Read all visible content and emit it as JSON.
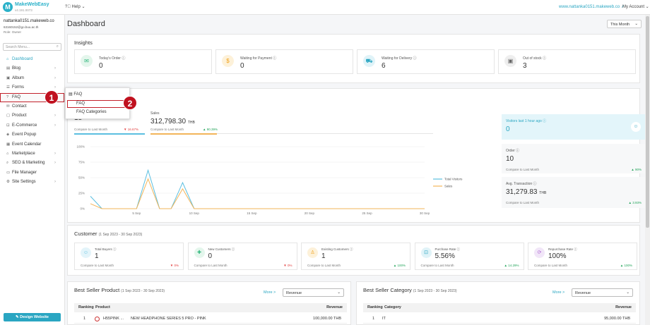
{
  "topbar": {
    "app_name": "MakeWebEasy",
    "version": "v4.191.0073",
    "help": "Help",
    "site_link": "www.nattanka0151.makeweb.co",
    "account": "My Account"
  },
  "user": {
    "name": "nattanka0151.makeweb.co",
    "email": "63160152@go.buu.ac.th",
    "role": "Role: Owner"
  },
  "sidebar": {
    "search_placeholder": "Search Menu...",
    "items": [
      {
        "label": "Dashboard",
        "icon": "home-icon",
        "chev": ""
      },
      {
        "label": "Blog",
        "icon": "blog-icon",
        "chev": "›"
      },
      {
        "label": "Album",
        "icon": "album-icon",
        "chev": "›"
      },
      {
        "label": "Forms",
        "icon": "forms-icon",
        "chev": "›"
      },
      {
        "label": "FAQ",
        "icon": "faq-icon",
        "chev": "›"
      },
      {
        "label": "Contact",
        "icon": "contact-icon",
        "chev": ""
      },
      {
        "label": "Product",
        "icon": "product-icon",
        "chev": "›"
      },
      {
        "label": "E-Commerce",
        "icon": "ecommerce-icon",
        "chev": "›"
      },
      {
        "label": "Event Popup",
        "icon": "popup-icon",
        "chev": ""
      },
      {
        "label": "Event Calendar",
        "icon": "calendar-icon",
        "chev": ""
      },
      {
        "label": "Marketplace",
        "icon": "marketplace-icon",
        "chev": "›"
      },
      {
        "label": "SEO & Marketing",
        "icon": "seo-icon",
        "chev": "›"
      },
      {
        "label": "File Manager",
        "icon": "folder-icon",
        "chev": ""
      },
      {
        "label": "Site Settings",
        "icon": "gear-icon",
        "chev": "›"
      }
    ],
    "design_button": "Design Website"
  },
  "popup": {
    "header": "FAQ",
    "items": [
      "FAQ",
      "FAQ Categories"
    ]
  },
  "badges": [
    "1",
    "2"
  ],
  "main": {
    "title": "Dashboard",
    "period": "This Month"
  },
  "insights": {
    "title": "Insights",
    "cards": [
      {
        "label": "Today's Order",
        "value": "0",
        "color": "#2ab57a",
        "bg": "#e4f6ec"
      },
      {
        "label": "Waiting for Payment",
        "value": "0",
        "color": "#f0a21c",
        "bg": "#fdf1d9"
      },
      {
        "label": "Waiting for Delivery",
        "value": "6",
        "color": "#2aa6c2",
        "bg": "#e0f3f8"
      },
      {
        "label": "Out of stock",
        "value": "3",
        "color": "#666",
        "bg": "#eeeeee"
      }
    ]
  },
  "sales_overview": {
    "visitors_value": "18",
    "visitors_compare": "Compare to Last Month",
    "visitors_change": "▼ 16.67%",
    "sales_label": "Sales",
    "sales_value": "312,798.30",
    "sales_unit": "THB",
    "sales_compare": "Compare to Last Month",
    "sales_change": "▲ 90.39%",
    "right": [
      {
        "label": "Visitors last 1 hour ago",
        "value": "0",
        "cmp": "",
        "chg": "",
        "unit": ""
      },
      {
        "label": "Order",
        "value": "10",
        "cmp": "Compare to Last Month",
        "chg": "▲ 90%",
        "unit": ""
      },
      {
        "label": "Avg. Transaction",
        "value": "31,279.83",
        "cmp": "Compare to Last Month",
        "chg": "▲ 3.93%",
        "unit": "THB"
      }
    ]
  },
  "chart_data": {
    "type": "line",
    "x": [
      "1 Sep",
      "2 Sep",
      "3 Sep",
      "4 Sep",
      "5 Sep",
      "6 Sep",
      "7 Sep",
      "8 Sep",
      "9 Sep",
      "10 Sep",
      "11 Sep",
      "12 Sep",
      "13 Sep",
      "14 Sep",
      "15 Sep",
      "16 Sep",
      "17 Sep",
      "18 Sep",
      "19 Sep",
      "20 Sep",
      "21 Sep",
      "22 Sep",
      "23 Sep",
      "24 Sep",
      "25 Sep",
      "26 Sep",
      "27 Sep",
      "28 Sep",
      "29 Sep",
      "30 Sep"
    ],
    "xticks": [
      "5 Sep",
      "10 Sep",
      "15 Sep",
      "20 Sep",
      "25 Sep",
      "30 Sep"
    ],
    "yticks": [
      "100%",
      "75%",
      "50%",
      "25%",
      "0%"
    ],
    "ylim": [
      0,
      100
    ],
    "series": [
      {
        "name": "Total Visitors",
        "color": "#5bbfe0",
        "values": [
          20,
          0,
          0,
          0,
          0,
          62,
          0,
          0,
          42,
          0,
          0,
          0,
          0,
          0,
          0,
          0,
          0,
          0,
          0,
          0,
          0,
          0,
          0,
          0,
          0,
          0,
          0,
          0,
          0,
          0
        ]
      },
      {
        "name": "Sales",
        "color": "#f2b55a",
        "values": [
          8,
          0,
          0,
          0,
          0,
          48,
          0,
          0,
          32,
          0,
          0,
          0,
          0,
          0,
          0,
          0,
          0,
          0,
          0,
          0,
          0,
          0,
          0,
          0,
          0,
          0,
          0,
          0,
          0,
          0
        ]
      }
    ],
    "legend_position": "right"
  },
  "customer": {
    "title": "Customer",
    "range": "(1 Sep 2023 - 30 Sep 2023)",
    "cards": [
      {
        "label": "Total Buyers",
        "value": "1",
        "cmp": "Compare to Last Month",
        "chg": "▼ 0%",
        "cls": "neg",
        "color": "#5bbfe0",
        "bg": "#e3f4fa"
      },
      {
        "label": "New Customers",
        "value": "0",
        "cmp": "Compare to Last Month",
        "chg": "▼ 0%",
        "cls": "neg",
        "color": "#2ab57a",
        "bg": "#e4f6ec"
      },
      {
        "label": "Existing Customers",
        "value": "1",
        "cmp": "Compare to Last Month",
        "chg": "▲ 100%",
        "cls": "pos",
        "color": "#f0a21c",
        "bg": "#fdf1d9"
      },
      {
        "label": "Purchase Rate",
        "value": "5.56%",
        "cmp": "Compare to Last Month",
        "chg": "▲ 14.29%",
        "cls": "pos",
        "color": "#2aa6c2",
        "bg": "#e0f3f8"
      },
      {
        "label": "Repurchase Rate",
        "value": "100%",
        "cmp": "Compare to Last Month",
        "chg": "▲ 100%",
        "cls": "pos",
        "color": "#b06ad4",
        "bg": "#f1e6f8"
      }
    ]
  },
  "best_product": {
    "title": "Best Seller Product",
    "range": "(1 Sep 2023 - 30 Sep 2023)",
    "more": "More >",
    "select": "Revenue",
    "col_ranking": "Ranking",
    "col_product": "Product",
    "col_revenue": "Revenue",
    "row": {
      "rank": "1",
      "sku": "H55PINK ...",
      "name": "NEW HEADPHONE SERIES 5 PRO - PINK",
      "revenue": "100,000.00 THB"
    }
  },
  "best_category": {
    "title": "Best Seller Category",
    "range": "(1 Sep 2023 - 30 Sep 2023)",
    "more": "More >",
    "select": "Revenue",
    "col_ranking": "Ranking",
    "col_category": "Category",
    "col_revenue": "Revenue",
    "row": {
      "rank": "1",
      "name": "IT",
      "revenue": "95,000.00 THB"
    }
  }
}
